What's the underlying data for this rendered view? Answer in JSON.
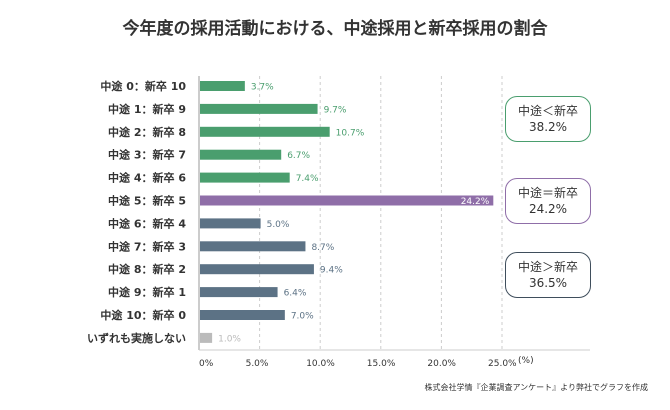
{
  "title": "今年度の採用活動における、中途採用と新卒採用の割合",
  "chart_data": {
    "type": "bar",
    "orientation": "horizontal",
    "categories": [
      "中途 0：新卒 10",
      "中途 1：新卒 9",
      "中途 2：新卒 8",
      "中途 3：新卒 7",
      "中途 4：新卒 6",
      "中途 5：新卒 5",
      "中途 6：新卒 4",
      "中途 7：新卒 3",
      "中途 8：新卒 2",
      "中途 9：新卒 1",
      "中途 10：新卒 0",
      "いずれも実施しない"
    ],
    "values": [
      3.7,
      9.7,
      10.7,
      6.7,
      7.4,
      24.2,
      5.0,
      8.7,
      9.4,
      6.4,
      7.0,
      1.0
    ],
    "data_labels": [
      "3.7%",
      "9.7%",
      "10.7%",
      "6.7%",
      "7.4%",
      "24.2%",
      "5.0%",
      "8.7%",
      "9.4%",
      "6.4%",
      "7.0%",
      "1.0%"
    ],
    "colors": [
      "#4a9e6e",
      "#4a9e6e",
      "#4a9e6e",
      "#4a9e6e",
      "#4a9e6e",
      "#8f6ea8",
      "#5c7285",
      "#5c7285",
      "#5c7285",
      "#5c7285",
      "#5c7285",
      "#bbbbbb"
    ],
    "label_colors": [
      "#4a9e6e",
      "#4a9e6e",
      "#4a9e6e",
      "#4a9e6e",
      "#4a9e6e",
      "#ffffff",
      "#5c7285",
      "#5c7285",
      "#5c7285",
      "#5c7285",
      "#5c7285",
      "#bbbbbb"
    ],
    "xlim": [
      0,
      25
    ],
    "xticks": [
      "0%",
      "5.0%",
      "10.0%",
      "15.0%",
      "20.0%",
      "25.0%"
    ],
    "xunit": "(%)",
    "grid": "vertical dashed"
  },
  "groups": [
    {
      "label": "中途＜新卒",
      "value": "38.2%",
      "color": "#4a9e6e"
    },
    {
      "label": "中途＝新卒",
      "value": "24.2%",
      "color": "#8f6ea8"
    },
    {
      "label": "中途＞新卒",
      "value": "36.5%",
      "color": "#3f4e5c"
    }
  ],
  "source": "株式会社学情『企業調査アンケート』より弊社でグラフを作成"
}
